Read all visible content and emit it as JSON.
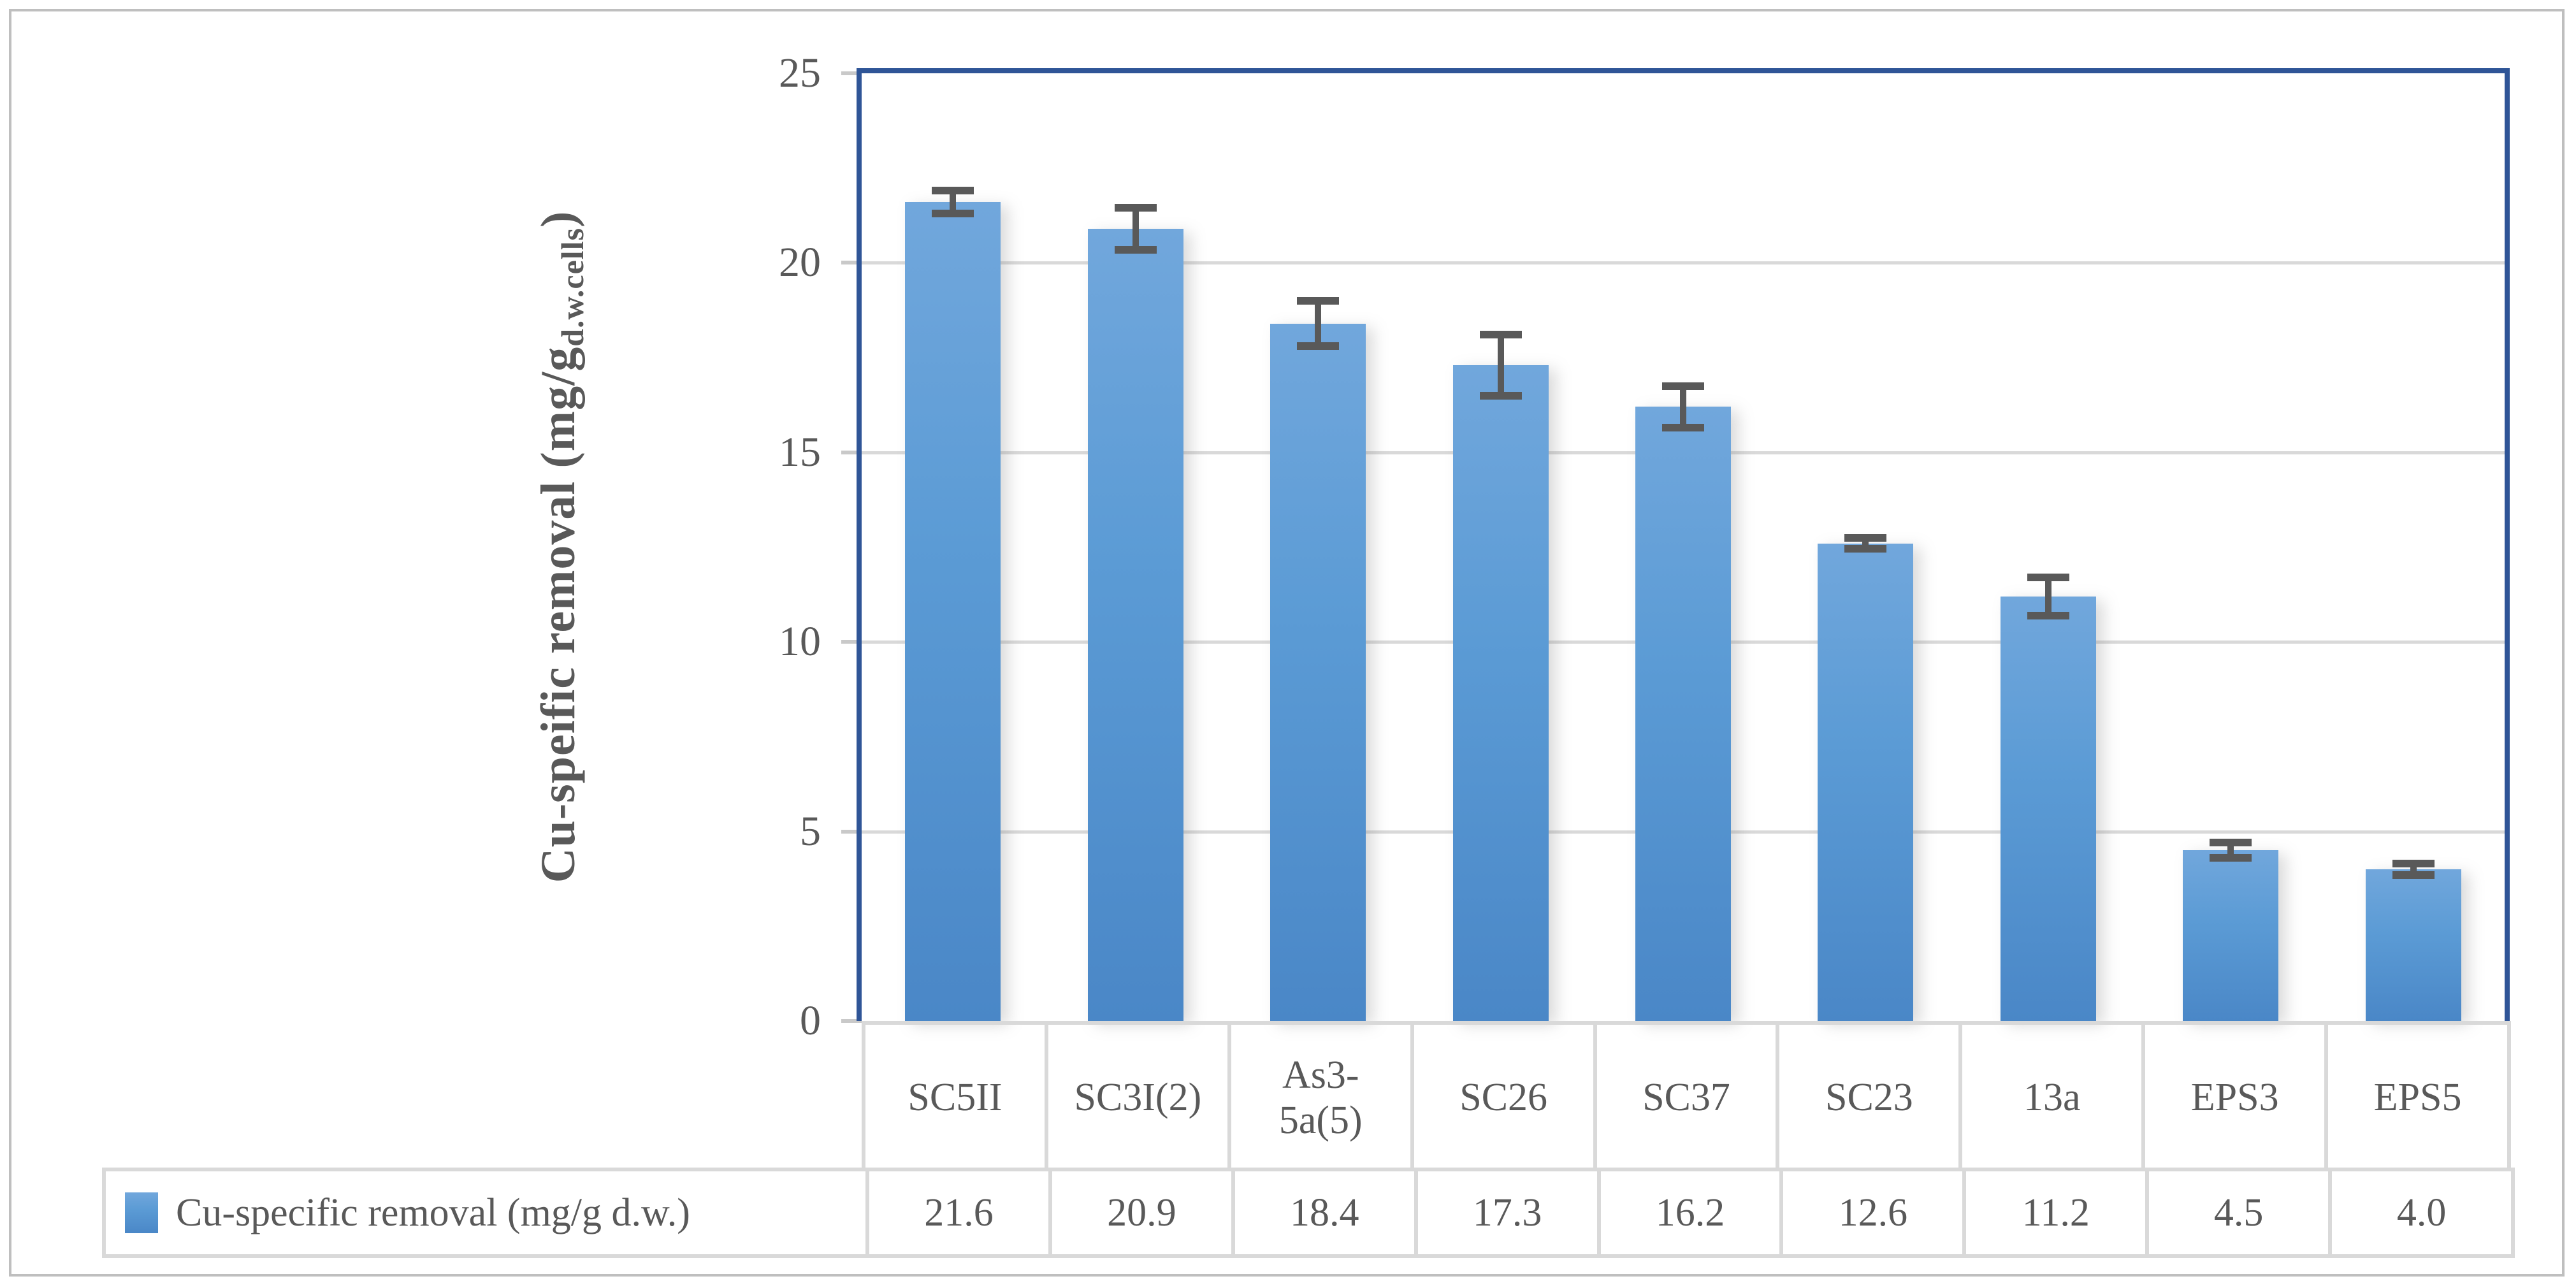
{
  "chart_data": {
    "type": "bar",
    "title": "",
    "ylabel_main": "Cu-speific removal (mg/g",
    "ylabel_sub": "d.w.cells",
    "ylabel_close": ")",
    "ylabel_full": "Cu-speific removal (mg/g d.w.cells)",
    "categories": [
      "SC5II",
      "SC3I(2)",
      "As3-\n5a(5)",
      "SC26",
      "SC37",
      "SC23",
      "13a",
      "EPS3",
      "EPS5"
    ],
    "values": [
      21.6,
      20.9,
      18.4,
      17.3,
      16.2,
      12.6,
      11.2,
      4.5,
      4.0
    ],
    "values_display": [
      "21.6",
      "20.9",
      "18.4",
      "17.3",
      "16.2",
      "12.6",
      "11.2",
      "4.5",
      "4.0"
    ],
    "errors": [
      0.3,
      0.55,
      0.6,
      0.8,
      0.55,
      0.15,
      0.5,
      0.2,
      0.15
    ],
    "series_name": "Cu-specific removal (mg/g d.w.)",
    "ylim": [
      0,
      25
    ],
    "ytick_labels": [
      "25",
      "20",
      "15",
      "10",
      "5",
      "0"
    ],
    "grid": true,
    "legend_position": "bottom-data-table"
  },
  "colors": {
    "bar_top": "#71A7DC",
    "bar_mid": "#5B9BD5",
    "bar_bottom": "#4A87C7",
    "plot_border": "#2F5597",
    "gridline": "#D9D9D9",
    "table_border": "#D9D9D9",
    "figure_border": "#BFBFBF",
    "text": "#595959",
    "error_bar": "#595959"
  }
}
